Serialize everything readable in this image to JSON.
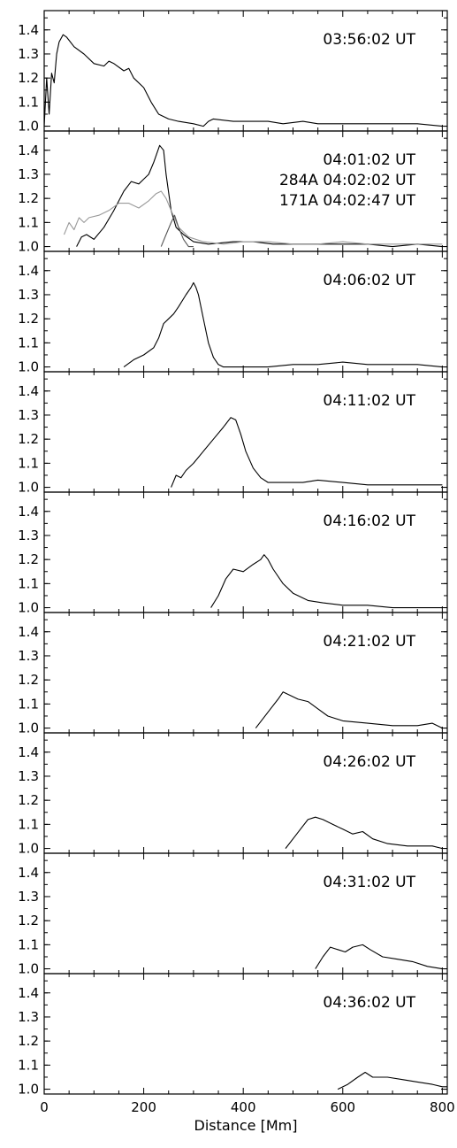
{
  "chart_data": {
    "type": "line",
    "xlabel": "Distance [Mm]",
    "xlim": [
      0,
      810
    ],
    "ylim": [
      0.98,
      1.48
    ],
    "x_ticks": [
      0,
      200,
      400,
      600,
      800
    ],
    "y_ticks": [
      1.0,
      1.1,
      1.2,
      1.3,
      1.4
    ],
    "grid": false,
    "colors": {
      "primary": "#000000",
      "aia284": "#999999",
      "aia171": "#555555"
    },
    "panels": [
      {
        "label": "03:56:02 UT",
        "series": [
          {
            "values": [
              [
                0,
                1.0
              ],
              [
                5,
                1.2
              ],
              [
                10,
                1.05
              ],
              [
                15,
                1.22
              ],
              [
                20,
                1.18
              ],
              [
                25,
                1.3
              ],
              [
                30,
                1.35
              ],
              [
                38,
                1.38
              ],
              [
                45,
                1.37
              ],
              [
                60,
                1.33
              ],
              [
                80,
                1.3
              ],
              [
                100,
                1.26
              ],
              [
                120,
                1.25
              ],
              [
                130,
                1.27
              ],
              [
                140,
                1.26
              ],
              [
                160,
                1.23
              ],
              [
                170,
                1.24
              ],
              [
                180,
                1.2
              ],
              [
                200,
                1.16
              ],
              [
                215,
                1.1
              ],
              [
                230,
                1.05
              ],
              [
                250,
                1.03
              ],
              [
                270,
                1.02
              ],
              [
                300,
                1.01
              ],
              [
                320,
                1.0
              ],
              [
                330,
                1.02
              ],
              [
                340,
                1.03
              ],
              [
                380,
                1.02
              ],
              [
                420,
                1.02
              ],
              [
                450,
                1.02
              ],
              [
                480,
                1.01
              ],
              [
                520,
                1.02
              ],
              [
                550,
                1.01
              ],
              [
                600,
                1.01
              ],
              [
                650,
                1.01
              ],
              [
                700,
                1.01
              ],
              [
                750,
                1.01
              ],
              [
                800,
                1.0
              ]
            ]
          }
        ]
      },
      {
        "label": "04:01:02 UT",
        "labels": [
          "284A 04:02:02 UT",
          "171A 04:02:47 UT"
        ],
        "series": [
          {
            "values": [
              [
                65,
                1.0
              ],
              [
                75,
                1.04
              ],
              [
                85,
                1.05
              ],
              [
                100,
                1.03
              ],
              [
                120,
                1.08
              ],
              [
                140,
                1.15
              ],
              [
                160,
                1.23
              ],
              [
                175,
                1.27
              ],
              [
                190,
                1.26
              ],
              [
                200,
                1.28
              ],
              [
                210,
                1.3
              ],
              [
                220,
                1.35
              ],
              [
                232,
                1.42
              ],
              [
                240,
                1.4
              ],
              [
                245,
                1.3
              ],
              [
                255,
                1.15
              ],
              [
                265,
                1.08
              ],
              [
                280,
                1.05
              ],
              [
                300,
                1.02
              ],
              [
                330,
                1.01
              ],
              [
                380,
                1.02
              ],
              [
                420,
                1.02
              ],
              [
                460,
                1.01
              ],
              [
                500,
                1.01
              ],
              [
                560,
                1.01
              ],
              [
                600,
                1.01
              ],
              [
                650,
                1.01
              ],
              [
                700,
                1.0
              ],
              [
                750,
                1.01
              ],
              [
                800,
                1.0
              ]
            ]
          },
          {
            "values": [
              [
                40,
                1.05
              ],
              [
                50,
                1.1
              ],
              [
                60,
                1.07
              ],
              [
                70,
                1.12
              ],
              [
                80,
                1.1
              ],
              [
                90,
                1.12
              ],
              [
                110,
                1.13
              ],
              [
                130,
                1.15
              ],
              [
                150,
                1.18
              ],
              [
                170,
                1.18
              ],
              [
                190,
                1.16
              ],
              [
                210,
                1.19
              ],
              [
                225,
                1.22
              ],
              [
                235,
                1.23
              ],
              [
                245,
                1.2
              ],
              [
                255,
                1.15
              ],
              [
                270,
                1.08
              ],
              [
                290,
                1.04
              ],
              [
                320,
                1.02
              ],
              [
                360,
                1.01
              ],
              [
                400,
                1.02
              ],
              [
                450,
                1.02
              ],
              [
                500,
                1.01
              ],
              [
                550,
                1.01
              ],
              [
                600,
                1.02
              ],
              [
                650,
                1.01
              ],
              [
                700,
                1.01
              ],
              [
                750,
                1.01
              ],
              [
                800,
                1.01
              ]
            ]
          },
          {
            "values": [
              [
                235,
                1.0
              ],
              [
                245,
                1.05
              ],
              [
                255,
                1.1
              ],
              [
                262,
                1.13
              ],
              [
                270,
                1.08
              ],
              [
                280,
                1.03
              ],
              [
                290,
                1.0
              ],
              [
                300,
                1.0
              ]
            ]
          }
        ]
      },
      {
        "label": "04:06:02 UT",
        "series": [
          {
            "values": [
              [
                160,
                1.0
              ],
              [
                180,
                1.03
              ],
              [
                200,
                1.05
              ],
              [
                220,
                1.08
              ],
              [
                230,
                1.12
              ],
              [
                240,
                1.18
              ],
              [
                250,
                1.2
              ],
              [
                260,
                1.22
              ],
              [
                270,
                1.25
              ],
              [
                285,
                1.3
              ],
              [
                295,
                1.33
              ],
              [
                300,
                1.35
              ],
              [
                305,
                1.33
              ],
              [
                310,
                1.3
              ],
              [
                320,
                1.2
              ],
              [
                330,
                1.1
              ],
              [
                340,
                1.04
              ],
              [
                350,
                1.01
              ],
              [
                360,
                1.0
              ],
              [
                400,
                1.0
              ],
              [
                450,
                1.0
              ],
              [
                500,
                1.01
              ],
              [
                550,
                1.01
              ],
              [
                600,
                1.02
              ],
              [
                650,
                1.01
              ],
              [
                700,
                1.01
              ],
              [
                750,
                1.01
              ],
              [
                800,
                1.0
              ]
            ]
          }
        ]
      },
      {
        "label": "04:11:02 UT",
        "series": [
          {
            "values": [
              [
                255,
                1.0
              ],
              [
                265,
                1.05
              ],
              [
                275,
                1.04
              ],
              [
                285,
                1.07
              ],
              [
                300,
                1.1
              ],
              [
                320,
                1.15
              ],
              [
                340,
                1.2
              ],
              [
                360,
                1.25
              ],
              [
                375,
                1.29
              ],
              [
                385,
                1.28
              ],
              [
                395,
                1.22
              ],
              [
                405,
                1.15
              ],
              [
                420,
                1.08
              ],
              [
                435,
                1.04
              ],
              [
                450,
                1.02
              ],
              [
                480,
                1.02
              ],
              [
                520,
                1.02
              ],
              [
                550,
                1.03
              ],
              [
                600,
                1.02
              ],
              [
                650,
                1.01
              ],
              [
                700,
                1.01
              ],
              [
                750,
                1.01
              ],
              [
                800,
                1.01
              ]
            ]
          }
        ]
      },
      {
        "label": "04:16:02 UT",
        "series": [
          {
            "values": [
              [
                335,
                1.0
              ],
              [
                350,
                1.05
              ],
              [
                365,
                1.12
              ],
              [
                380,
                1.16
              ],
              [
                400,
                1.15
              ],
              [
                420,
                1.18
              ],
              [
                435,
                1.2
              ],
              [
                442,
                1.22
              ],
              [
                450,
                1.2
              ],
              [
                460,
                1.16
              ],
              [
                480,
                1.1
              ],
              [
                500,
                1.06
              ],
              [
                530,
                1.03
              ],
              [
                560,
                1.02
              ],
              [
                600,
                1.01
              ],
              [
                650,
                1.01
              ],
              [
                700,
                1.0
              ],
              [
                750,
                1.0
              ],
              [
                800,
                1.0
              ]
            ]
          }
        ]
      },
      {
        "label": "04:21:02 UT",
        "series": [
          {
            "values": [
              [
                425,
                1.0
              ],
              [
                440,
                1.04
              ],
              [
                455,
                1.08
              ],
              [
                470,
                1.12
              ],
              [
                480,
                1.15
              ],
              [
                490,
                1.14
              ],
              [
                510,
                1.12
              ],
              [
                530,
                1.11
              ],
              [
                550,
                1.08
              ],
              [
                570,
                1.05
              ],
              [
                600,
                1.03
              ],
              [
                650,
                1.02
              ],
              [
                700,
                1.01
              ],
              [
                750,
                1.01
              ],
              [
                780,
                1.02
              ],
              [
                800,
                1.0
              ]
            ]
          }
        ]
      },
      {
        "label": "04:26:02 UT",
        "series": [
          {
            "values": [
              [
                485,
                1.0
              ],
              [
                500,
                1.04
              ],
              [
                515,
                1.08
              ],
              [
                530,
                1.12
              ],
              [
                545,
                1.13
              ],
              [
                560,
                1.12
              ],
              [
                580,
                1.1
              ],
              [
                600,
                1.08
              ],
              [
                620,
                1.06
              ],
              [
                640,
                1.07
              ],
              [
                660,
                1.04
              ],
              [
                690,
                1.02
              ],
              [
                730,
                1.01
              ],
              [
                780,
                1.01
              ],
              [
                800,
                1.0
              ]
            ]
          }
        ]
      },
      {
        "label": "04:31:02 UT",
        "series": [
          {
            "values": [
              [
                545,
                1.0
              ],
              [
                560,
                1.05
              ],
              [
                575,
                1.09
              ],
              [
                590,
                1.08
              ],
              [
                605,
                1.07
              ],
              [
                620,
                1.09
              ],
              [
                640,
                1.1
              ],
              [
                655,
                1.08
              ],
              [
                680,
                1.05
              ],
              [
                710,
                1.04
              ],
              [
                740,
                1.03
              ],
              [
                770,
                1.01
              ],
              [
                800,
                1.0
              ]
            ]
          }
        ]
      },
      {
        "label": "04:36:02 UT",
        "series": [
          {
            "values": [
              [
                590,
                1.0
              ],
              [
                610,
                1.02
              ],
              [
                630,
                1.05
              ],
              [
                645,
                1.07
              ],
              [
                660,
                1.05
              ],
              [
                690,
                1.05
              ],
              [
                720,
                1.04
              ],
              [
                750,
                1.03
              ],
              [
                780,
                1.02
              ],
              [
                800,
                1.01
              ],
              [
                810,
                1.01
              ]
            ]
          }
        ]
      }
    ]
  }
}
